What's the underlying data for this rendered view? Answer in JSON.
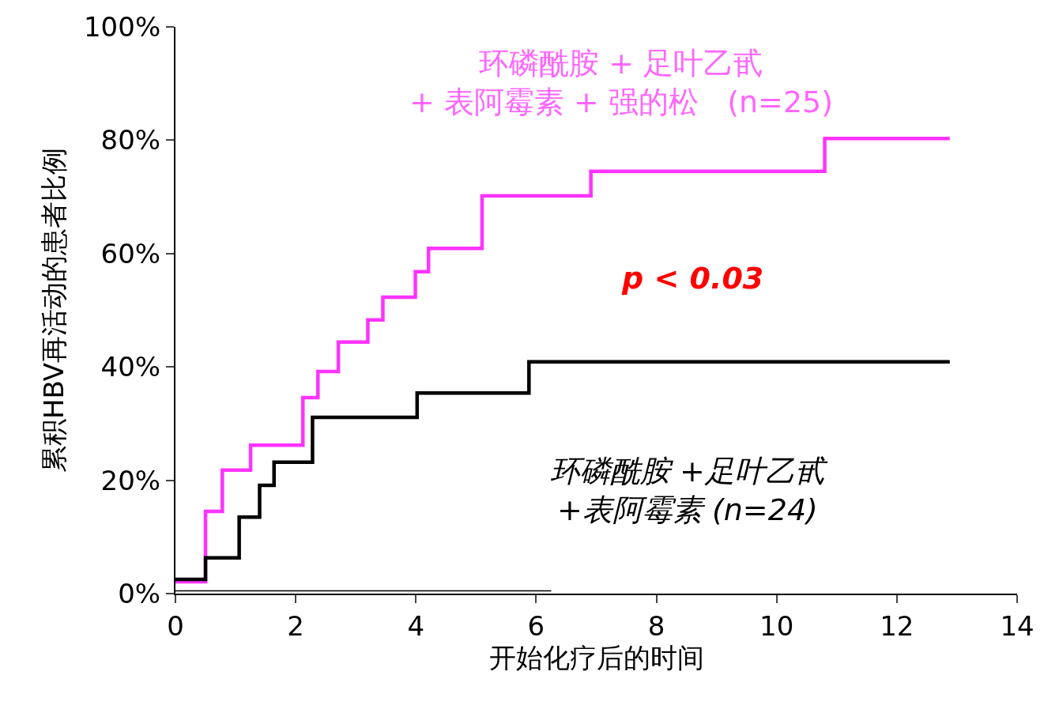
{
  "chart_data": {
    "type": "step",
    "xlabel": "开始化疗后的时间",
    "ylabel": "累积HBV再活动的患者比例",
    "series": [
      {
        "color": "#ff33ff",
        "x": [
          0,
          0.5,
          0.78,
          1.25,
          2.12,
          2.37,
          2.71,
          3.2,
          3.45,
          3.99,
          4.21,
          5.1,
          6.91,
          10.8,
          12.88
        ],
        "values": [
          2.1,
          14.5,
          21.8,
          26.2,
          34.6,
          39.2,
          44.4,
          48.3,
          52.3,
          56.8,
          60.9,
          70.2,
          74.5,
          80.3,
          80.3
        ]
      },
      {
        "color": "#000000",
        "x": [
          0,
          0.5,
          1.06,
          1.4,
          1.64,
          2.28,
          4.02,
          5.88,
          12.88
        ],
        "values": [
          2.5,
          6.3,
          13.5,
          19.1,
          23.2,
          31.1,
          35.4,
          40.9,
          40.9
        ]
      },
      {
        "color": "#000000",
        "type": "line",
        "x": [
          0,
          6.25
        ],
        "values": [
          0.5,
          0.5
        ]
      }
    ],
    "annotations": [
      "环磷酰胺 + 足叶乙甙\n+ 表阿霉素 + 强的松   (n=25)",
      "p < 0.03",
      "环磷酰胺 +足叶乙甙\n+表阿霉素 (n=24)"
    ],
    "xlim": [
      0,
      14
    ],
    "xticks": [
      0,
      2,
      4,
      6,
      8,
      10,
      12,
      14
    ],
    "ylim": [
      0,
      100
    ],
    "yticks": [
      {
        "value": 0,
        "label": "0%"
      },
      {
        "value": 20,
        "label": "20%"
      },
      {
        "value": 40,
        "label": "40%"
      },
      {
        "value": 60,
        "label": "60%"
      },
      {
        "value": 80,
        "label": "80%"
      },
      {
        "value": 100,
        "label": "100%"
      }
    ],
    "tick_labels": "xy"
  }
}
